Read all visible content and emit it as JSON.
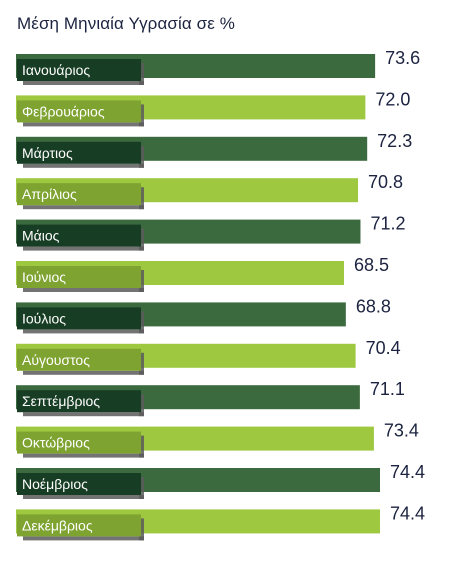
{
  "chart_data": {
    "type": "bar",
    "orientation": "horizontal",
    "title": "Μέση Μηνιαία Υγρασία σε %",
    "categories": [
      "Ιανουάριος",
      "Φεβρουάριος",
      "Μάρτιος",
      "Απρίλιος",
      "Μάιος",
      "Ιούνιος",
      "Ιούλιος",
      "Αύγουστος",
      "Σεπτέμβριος",
      "Οκτώβριος",
      "Νοέμβριος",
      "Δεκέμβριος"
    ],
    "values": [
      73.6,
      72.0,
      72.3,
      70.8,
      71.2,
      68.5,
      68.8,
      70.4,
      71.1,
      73.4,
      74.4,
      74.4
    ],
    "value_labels": [
      "73.6",
      "72.0",
      "72.3",
      "70.8",
      "71.2",
      "68.5",
      "68.8",
      "70.4",
      "71.1",
      "73.4",
      "74.4",
      "74.4"
    ],
    "xlabel": "",
    "ylabel": "",
    "grid": false,
    "legend": "none"
  },
  "colors": {
    "bar_dark": "#3c6a3f",
    "bar_light": "#9dc840",
    "label_dark": "#173d24",
    "label_light": "#7ea331",
    "label_shadow": "#5a5a5a",
    "text_dark": "#1c2340"
  }
}
